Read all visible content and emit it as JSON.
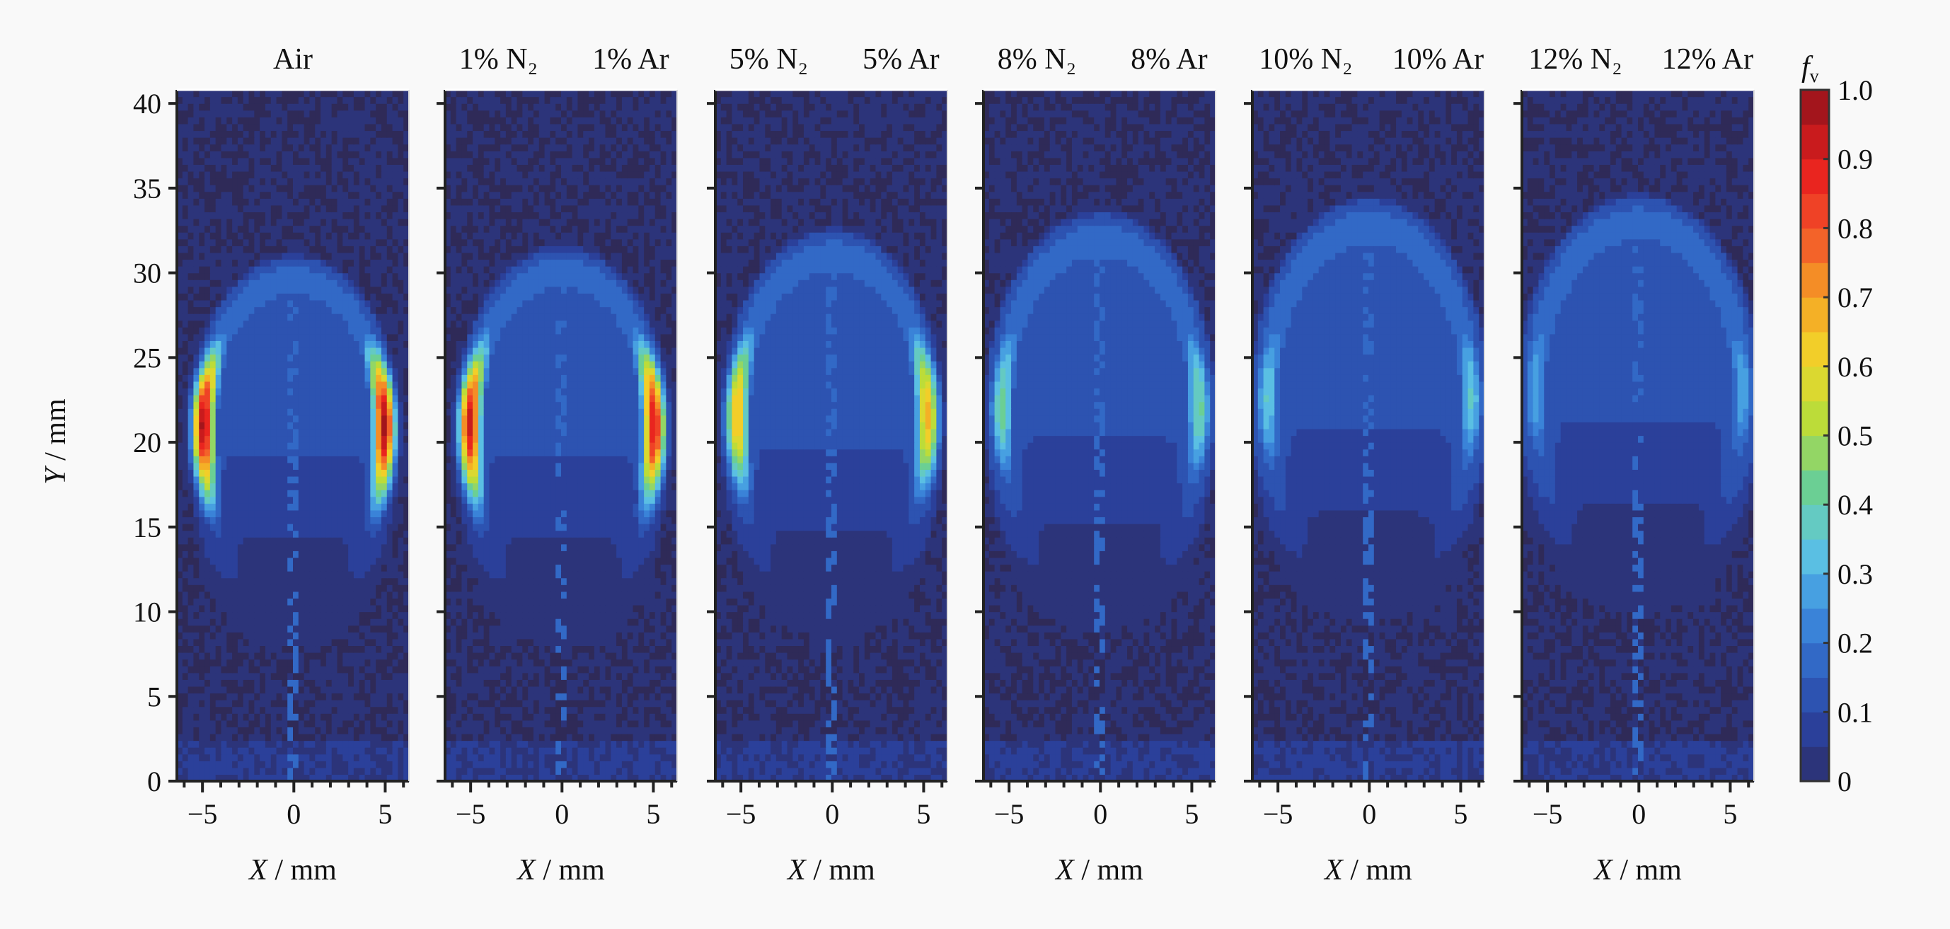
{
  "chart_data": {
    "type": "heatmap",
    "xlabel": {
      "symbol": "X",
      "unit": " / mm"
    },
    "ylabel": {
      "symbol": "Y",
      "unit": " / mm"
    },
    "xlim": [
      -6.4,
      6.3
    ],
    "ylim": [
      0,
      40.8
    ],
    "x_ticks": [
      "−5",
      "0",
      "5"
    ],
    "x_tick_values": [
      -5,
      0,
      5
    ],
    "y_ticks": [
      "0",
      "5",
      "10",
      "15",
      "20",
      "25",
      "30",
      "35",
      "40"
    ],
    "y_tick_values": [
      0,
      5,
      10,
      15,
      20,
      25,
      30,
      35,
      40
    ],
    "colorbar": {
      "title": {
        "symbol": "f",
        "subscript": "v"
      },
      "range": [
        0,
        1.0
      ],
      "levels": 20,
      "ticks": [
        "0",
        "0.1",
        "0.2",
        "0.3",
        "0.4",
        "0.5",
        "0.6",
        "0.7",
        "0.8",
        "0.9",
        "1.0"
      ],
      "colors": [
        "#2f2a58",
        "#2a3d96",
        "#2f5fc0",
        "#3d8fe0",
        "#5fc7e3",
        "#6ccf90",
        "#b9dc3a",
        "#f2d62a",
        "#f5a024",
        "#f2542a",
        "#e8201e",
        "#a3151c"
      ]
    },
    "panels": [
      {
        "title_left": "Air",
        "title_right": "",
        "peak_fv": 1.0,
        "flame_tip_mm": 30.5,
        "peak_height_mm": 21,
        "wing_x_mm": 5.5
      },
      {
        "title_left": "1% N₂",
        "title_right": "1% Ar",
        "peak_fv": 0.95,
        "flame_tip_mm": 31,
        "peak_height_mm": 21,
        "wing_x_mm": 5.6
      },
      {
        "title_left": "5% N₂",
        "title_right": "5% Ar",
        "peak_fv": 0.7,
        "flame_tip_mm": 32,
        "peak_height_mm": 21.5,
        "wing_x_mm": 5.8
      },
      {
        "title_left": "8% N₂",
        "title_right": "8% Ar",
        "peak_fv": 0.45,
        "flame_tip_mm": 33,
        "peak_height_mm": 22,
        "wing_x_mm": 6.0
      },
      {
        "title_left": "10% N₂",
        "title_right": "10% Ar",
        "peak_fv": 0.38,
        "flame_tip_mm": 33.8,
        "peak_height_mm": 22.5,
        "wing_x_mm": 6.2
      },
      {
        "title_left": "12% N₂",
        "title_right": "12% Ar",
        "peak_fv": 0.32,
        "flame_tip_mm": 34,
        "peak_height_mm": 23,
        "wing_x_mm": 6.3
      }
    ]
  }
}
